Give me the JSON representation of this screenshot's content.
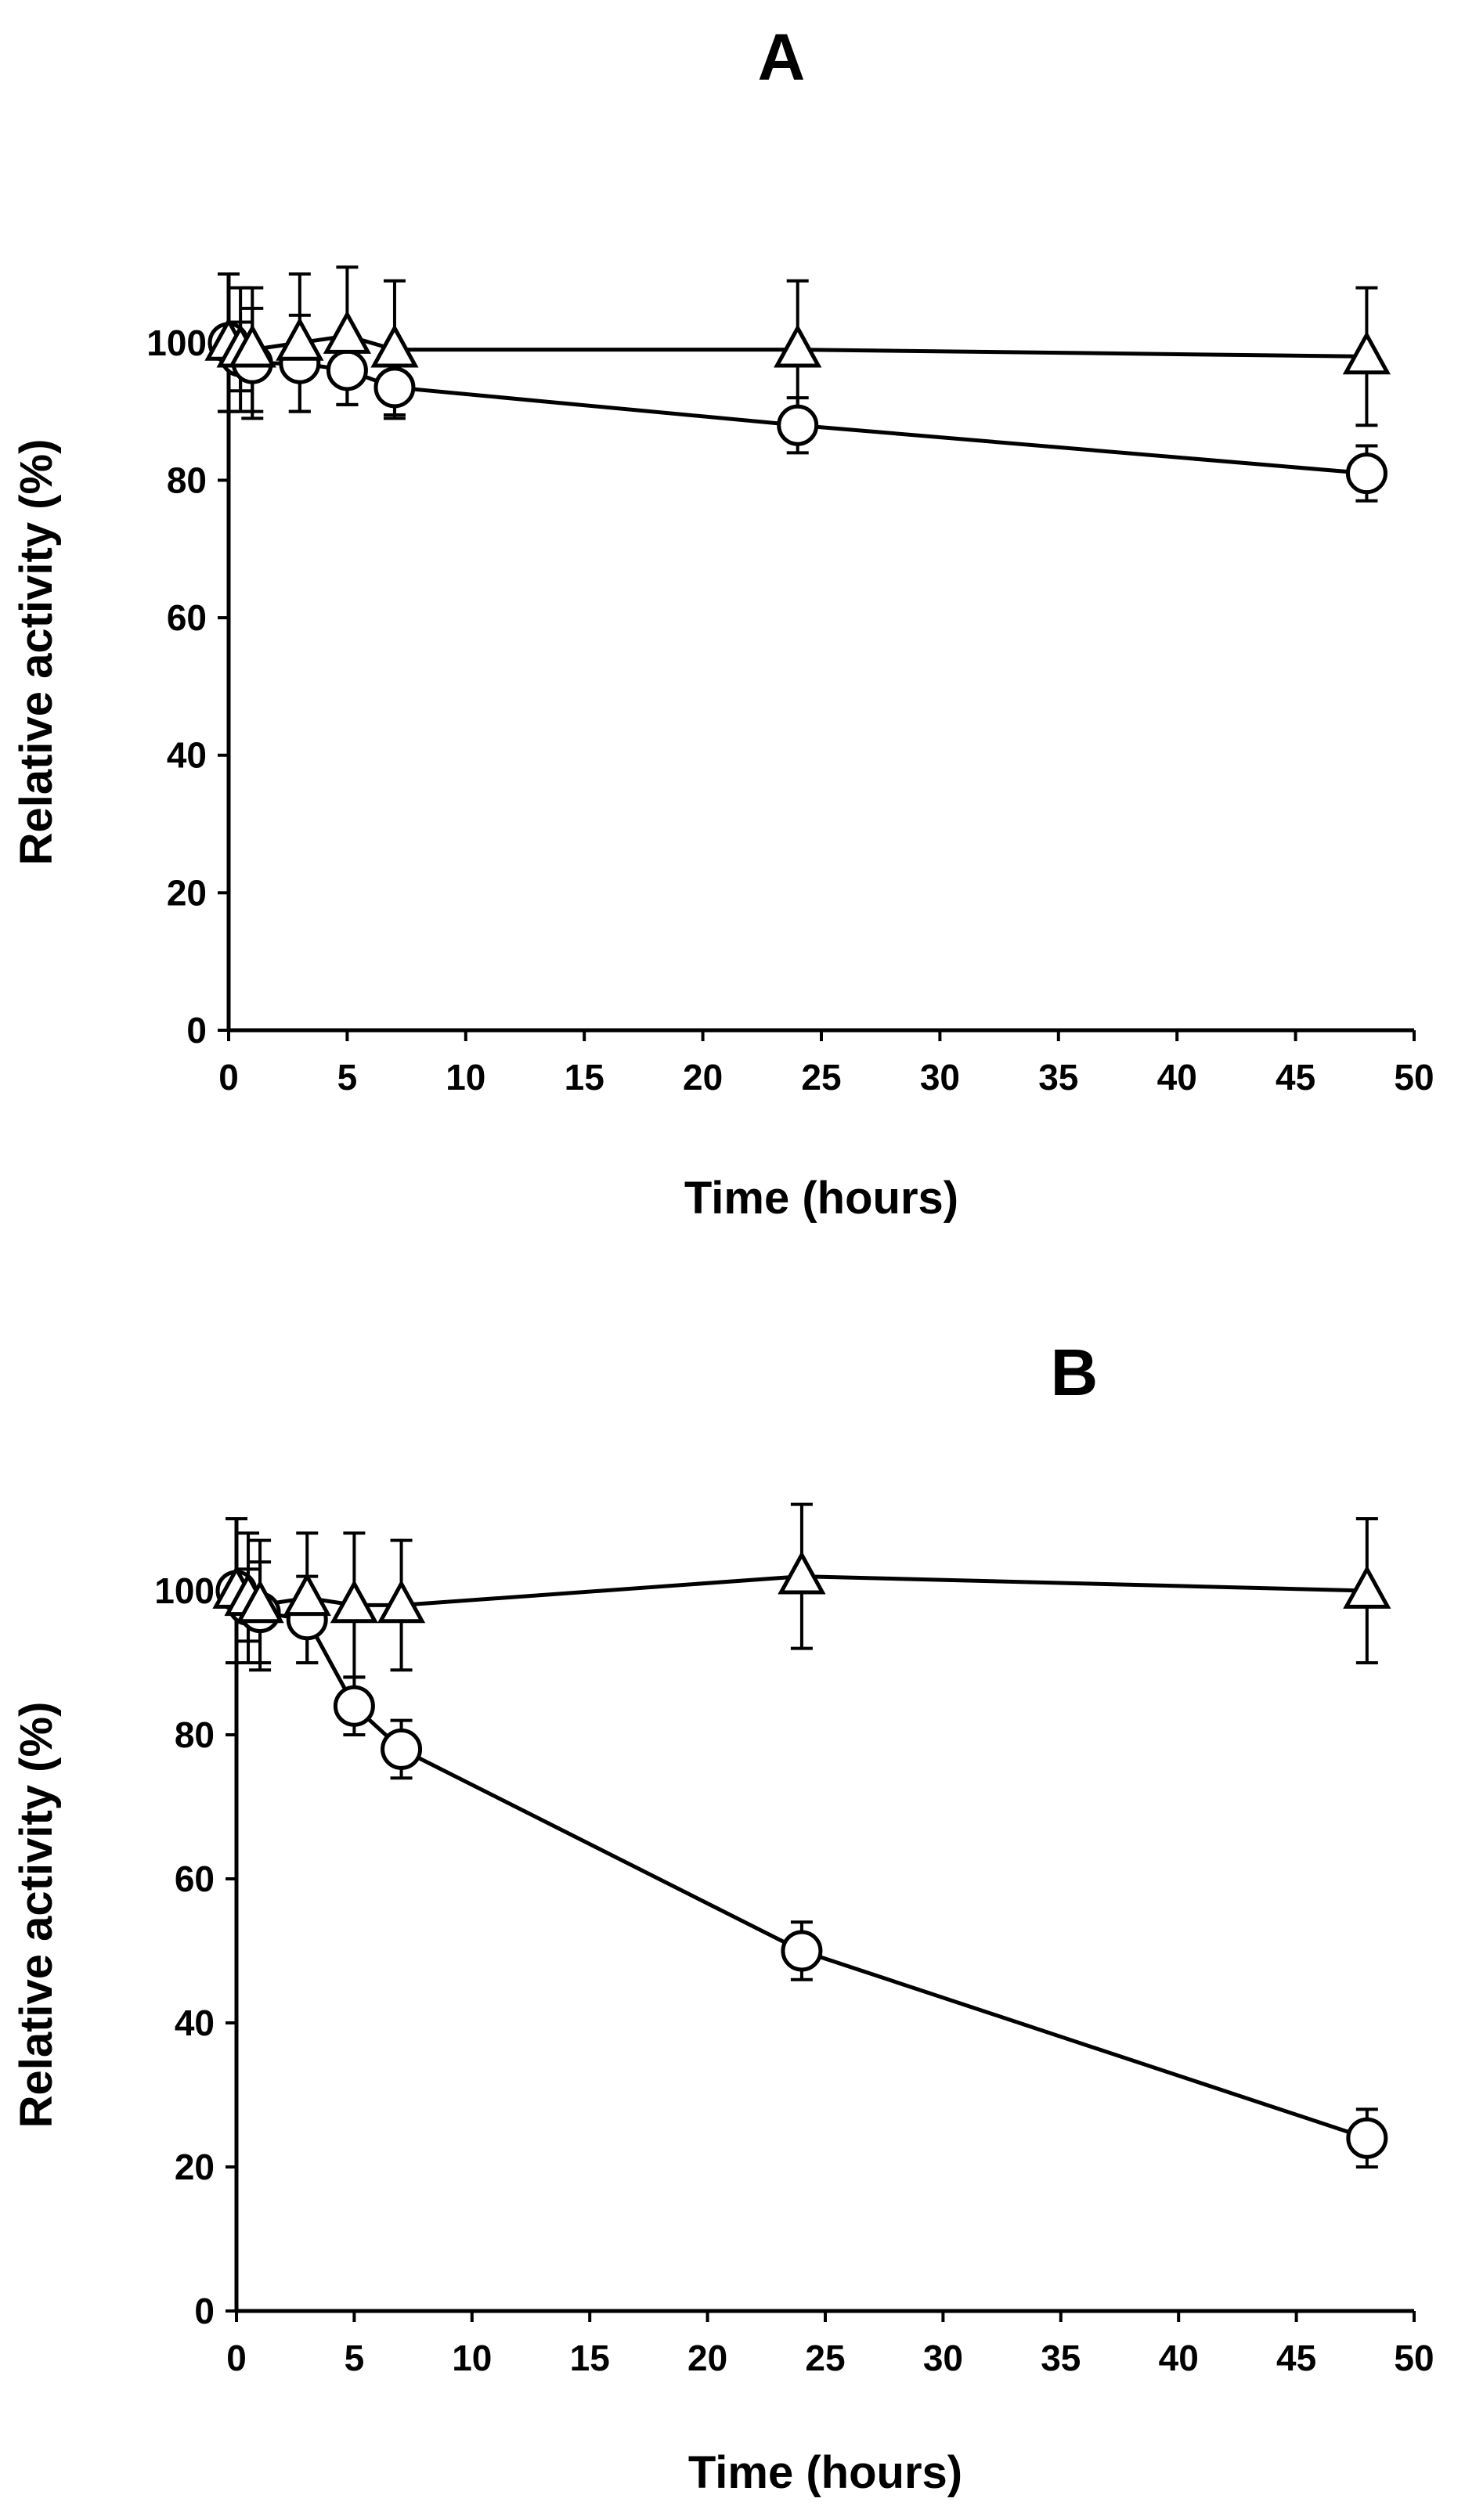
{
  "chart_data": [
    {
      "panel": "A",
      "type": "line",
      "title": "A",
      "xlabel": "Time (hours)",
      "ylabel": "Relative activity (%)",
      "xlim": [
        0,
        50
      ],
      "ylim": [
        0,
        110
      ],
      "xticks": [
        0,
        5,
        10,
        15,
        20,
        25,
        30,
        35,
        40,
        45,
        50
      ],
      "yticks": [
        0,
        20,
        40,
        60,
        80,
        100
      ],
      "grid": false,
      "series": [
        {
          "name": "circles",
          "marker": "circle",
          "x": [
            0,
            0.5,
            1,
            3,
            5,
            7,
            24,
            48
          ],
          "y": [
            100,
            98,
            97,
            97,
            96,
            93.5,
            88,
            81
          ],
          "err": [
            10,
            5,
            8,
            7,
            5,
            4,
            4,
            4
          ]
        },
        {
          "name": "triangles",
          "marker": "triangle",
          "x": [
            0,
            0.5,
            1,
            3,
            5,
            7,
            24,
            48
          ],
          "y": [
            100,
            99,
            99,
            100,
            101,
            99,
            99,
            98
          ],
          "err": [
            10,
            9,
            9,
            10,
            10,
            10,
            10,
            10
          ]
        }
      ]
    },
    {
      "panel": "B",
      "type": "line",
      "title": "B",
      "xlabel": "Time (hours)",
      "ylabel": "Relative activity (%)",
      "xlim": [
        0,
        50
      ],
      "ylim": [
        0,
        110
      ],
      "xticks": [
        0,
        5,
        10,
        15,
        20,
        25,
        30,
        35,
        40,
        45,
        50
      ],
      "yticks": [
        0,
        20,
        40,
        60,
        80,
        100
      ],
      "grid": false,
      "series": [
        {
          "name": "circles",
          "marker": "circle",
          "x": [
            0,
            0.5,
            1,
            3,
            5,
            7,
            24,
            48
          ],
          "y": [
            100,
            98,
            97,
            96,
            84,
            78,
            50,
            24
          ],
          "err": [
            10,
            5,
            7,
            6,
            4,
            4,
            4,
            4
          ]
        },
        {
          "name": "triangles",
          "marker": "triangle",
          "x": [
            0,
            0.5,
            1,
            3,
            5,
            7,
            24,
            48
          ],
          "y": [
            100,
            99,
            98,
            99,
            98,
            98,
            102,
            100
          ],
          "err": [
            10,
            9,
            9,
            9,
            10,
            9,
            10,
            10
          ]
        }
      ]
    }
  ]
}
